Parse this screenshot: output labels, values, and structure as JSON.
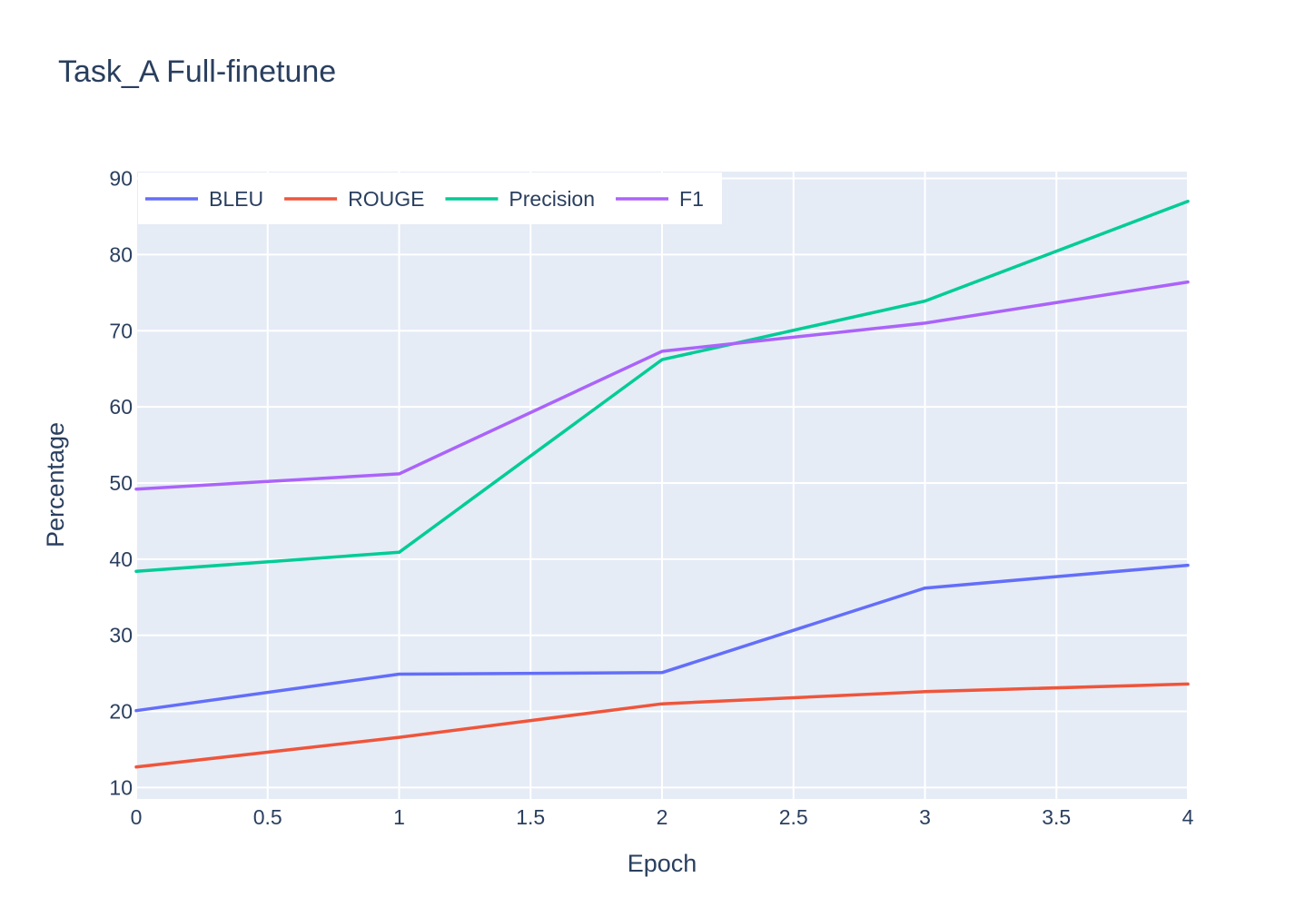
{
  "chart_data": {
    "type": "line",
    "title": "Task_A Full-finetune",
    "xlabel": "Epoch",
    "ylabel": "Percentage",
    "x": [
      0,
      1,
      2,
      3,
      4
    ],
    "xlim": [
      0,
      4
    ],
    "ylim": [
      8.5,
      90.9
    ],
    "xticks": [
      0,
      0.5,
      1,
      1.5,
      2,
      2.5,
      3,
      3.5,
      4
    ],
    "xtick_labels": [
      "0",
      "0.5",
      "1",
      "1.5",
      "2",
      "2.5",
      "3",
      "3.5",
      "4"
    ],
    "yticks": [
      10,
      20,
      30,
      40,
      50,
      60,
      70,
      80,
      90
    ],
    "ytick_labels": [
      "10",
      "20",
      "30",
      "40",
      "50",
      "60",
      "70",
      "80",
      "90"
    ],
    "grid": true,
    "legend_position": "top-left",
    "series": [
      {
        "name": "BLEU",
        "color": "#636efa",
        "values": [
          20.1,
          24.9,
          25.1,
          36.2,
          39.2
        ]
      },
      {
        "name": "ROUGE",
        "color": "#ef553b",
        "values": [
          12.7,
          16.6,
          21.0,
          22.6,
          23.6
        ]
      },
      {
        "name": "Precision",
        "color": "#00cc96",
        "values": [
          38.4,
          40.9,
          66.2,
          73.9,
          87.0
        ]
      },
      {
        "name": "F1",
        "color": "#ab63fa",
        "values": [
          49.2,
          51.2,
          67.3,
          71.0,
          76.4
        ]
      }
    ]
  }
}
